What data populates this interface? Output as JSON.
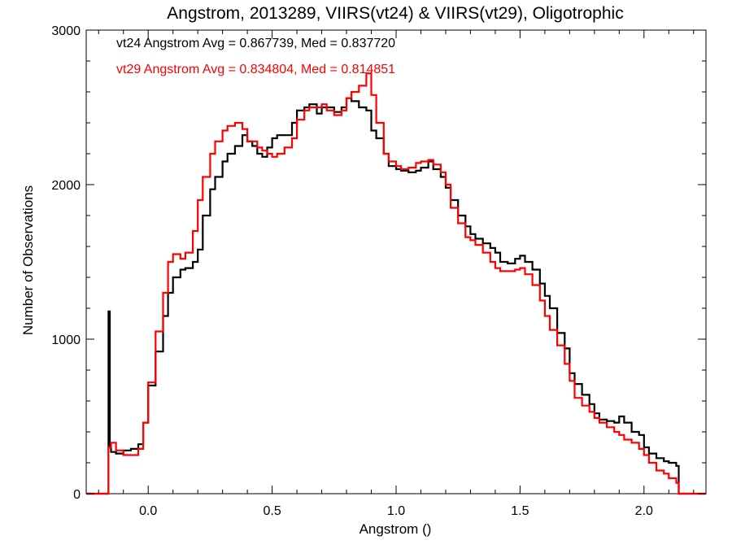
{
  "chart_data": {
    "type": "line",
    "title": "Angstrom, 2013289, VIIRS(vt24) & VIIRS(vt29), Oligotrophic",
    "xlabel": "Angstrom ()",
    "ylabel": "Number of Observations",
    "xlim": [
      -0.25,
      2.25
    ],
    "ylim": [
      0,
      3000
    ],
    "xticks": [
      0.0,
      0.5,
      1.0,
      1.5,
      2.0
    ],
    "xtick_labels": [
      "0.0",
      "0.5",
      "1.0",
      "1.5",
      "2.0"
    ],
    "yticks": [
      0,
      1000,
      2000,
      3000
    ],
    "ytick_labels": [
      "0",
      "1000",
      "2000",
      "3000"
    ],
    "grid": false,
    "annotations": [
      {
        "text": "vt24 Angstrom Avg = 0.867739, Med = 0.837720",
        "color": "#000000"
      },
      {
        "text": "vt29 Angstrom Avg = 0.834804, Med = 0.814851",
        "color": "#ff0000"
      }
    ],
    "series": [
      {
        "color": "#000000",
        "step": true,
        "x": [
          -0.25,
          -0.16,
          -0.155,
          -0.15,
          -0.13,
          -0.1,
          -0.07,
          -0.04,
          -0.02,
          0.0,
          0.03,
          0.06,
          0.08,
          0.1,
          0.13,
          0.15,
          0.18,
          0.2,
          0.22,
          0.25,
          0.27,
          0.3,
          0.32,
          0.35,
          0.38,
          0.4,
          0.42,
          0.44,
          0.46,
          0.48,
          0.5,
          0.52,
          0.55,
          0.58,
          0.6,
          0.63,
          0.65,
          0.68,
          0.7,
          0.72,
          0.75,
          0.78,
          0.8,
          0.82,
          0.85,
          0.88,
          0.9,
          0.92,
          0.95,
          0.97,
          1.0,
          1.02,
          1.05,
          1.08,
          1.1,
          1.13,
          1.15,
          1.18,
          1.2,
          1.22,
          1.25,
          1.28,
          1.3,
          1.32,
          1.35,
          1.38,
          1.4,
          1.42,
          1.45,
          1.48,
          1.5,
          1.52,
          1.55,
          1.58,
          1.6,
          1.62,
          1.65,
          1.68,
          1.7,
          1.72,
          1.75,
          1.78,
          1.8,
          1.82,
          1.85,
          1.88,
          1.9,
          1.92,
          1.95,
          1.98,
          2.0,
          2.02,
          2.05,
          2.08,
          2.1,
          2.13,
          2.14,
          2.25
        ],
        "y": [
          0,
          1180,
          300,
          270,
          260,
          280,
          290,
          320,
          460,
          700,
          920,
          1150,
          1300,
          1400,
          1450,
          1460,
          1500,
          1580,
          1800,
          1970,
          2050,
          2150,
          2200,
          2250,
          2320,
          2280,
          2250,
          2200,
          2180,
          2240,
          2300,
          2320,
          2320,
          2400,
          2480,
          2500,
          2520,
          2460,
          2500,
          2500,
          2470,
          2500,
          2560,
          2540,
          2500,
          2480,
          2350,
          2300,
          2200,
          2120,
          2100,
          2090,
          2080,
          2090,
          2110,
          2150,
          2100,
          2050,
          1980,
          1900,
          1800,
          1730,
          1680,
          1650,
          1620,
          1590,
          1560,
          1500,
          1490,
          1520,
          1540,
          1500,
          1450,
          1360,
          1280,
          1200,
          1040,
          940,
          780,
          710,
          640,
          580,
          520,
          480,
          470,
          460,
          500,
          460,
          400,
          380,
          300,
          260,
          230,
          210,
          200,
          180,
          0,
          0
        ]
      },
      {
        "color": "#ff0000",
        "step": true,
        "x": [
          -0.25,
          -0.16,
          -0.15,
          -0.13,
          -0.1,
          -0.07,
          -0.04,
          -0.02,
          0.0,
          0.03,
          0.06,
          0.08,
          0.1,
          0.13,
          0.15,
          0.18,
          0.2,
          0.22,
          0.25,
          0.27,
          0.3,
          0.32,
          0.35,
          0.38,
          0.4,
          0.42,
          0.44,
          0.46,
          0.48,
          0.5,
          0.52,
          0.55,
          0.58,
          0.6,
          0.63,
          0.65,
          0.68,
          0.7,
          0.72,
          0.75,
          0.78,
          0.8,
          0.82,
          0.85,
          0.88,
          0.9,
          0.92,
          0.95,
          0.97,
          1.0,
          1.02,
          1.05,
          1.08,
          1.1,
          1.13,
          1.15,
          1.18,
          1.2,
          1.22,
          1.25,
          1.28,
          1.3,
          1.32,
          1.35,
          1.38,
          1.4,
          1.42,
          1.45,
          1.48,
          1.5,
          1.52,
          1.55,
          1.58,
          1.6,
          1.62,
          1.65,
          1.68,
          1.7,
          1.72,
          1.75,
          1.78,
          1.8,
          1.82,
          1.85,
          1.88,
          1.9,
          1.92,
          1.95,
          1.98,
          2.0,
          2.02,
          2.05,
          2.08,
          2.1,
          2.13,
          2.14,
          2.25
        ],
        "y": [
          0,
          300,
          330,
          280,
          250,
          250,
          290,
          460,
          720,
          1050,
          1300,
          1500,
          1550,
          1520,
          1560,
          1700,
          1900,
          2050,
          2200,
          2280,
          2350,
          2380,
          2400,
          2360,
          2280,
          2280,
          2240,
          2220,
          2200,
          2180,
          2200,
          2240,
          2300,
          2420,
          2480,
          2500,
          2500,
          2520,
          2480,
          2450,
          2480,
          2560,
          2600,
          2640,
          2720,
          2580,
          2400,
          2200,
          2150,
          2120,
          2100,
          2110,
          2140,
          2150,
          2160,
          2130,
          2080,
          2000,
          1850,
          1750,
          1660,
          1640,
          1610,
          1560,
          1500,
          1460,
          1440,
          1440,
          1450,
          1460,
          1420,
          1350,
          1250,
          1150,
          1060,
          960,
          840,
          730,
          620,
          570,
          530,
          490,
          460,
          430,
          400,
          380,
          350,
          330,
          290,
          250,
          200,
          150,
          130,
          100,
          70,
          0,
          0
        ]
      }
    ]
  }
}
